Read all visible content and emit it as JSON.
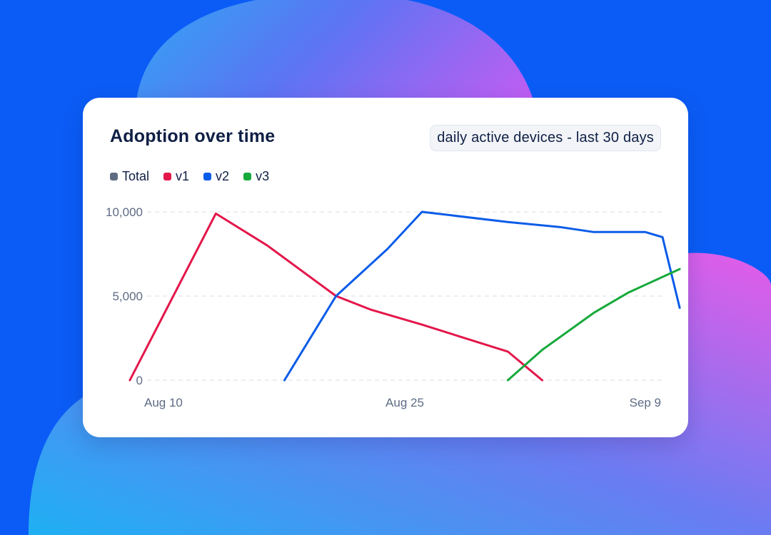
{
  "card": {
    "title": "Adoption over time",
    "range_label": "daily active devices - last 30 days"
  },
  "legend": [
    {
      "label": "Total",
      "color": "#5f6b80"
    },
    {
      "label": "v1",
      "color": "#e3174a"
    },
    {
      "label": "v2",
      "color": "#0b5ce8"
    },
    {
      "label": "v3",
      "color": "#16a93b"
    }
  ],
  "chart_data": {
    "type": "line",
    "title": "Adoption over time",
    "subtitle": "daily active devices - last 30 days",
    "xlabel": "",
    "ylabel": "",
    "x_range": [
      "2024-08-10",
      "2024-09-09"
    ],
    "ylim": [
      0,
      10000
    ],
    "y_ticks": [
      {
        "value": 0,
        "label": "0"
      },
      {
        "value": 5000,
        "label": "5,000"
      },
      {
        "value": 10000,
        "label": "10,000"
      }
    ],
    "x_ticks": [
      {
        "date": "2024-08-10",
        "label": "Aug 10"
      },
      {
        "date": "2024-08-25",
        "label": "Aug 25"
      },
      {
        "date": "2024-09-09",
        "label": "Sep 9"
      }
    ],
    "grid": true,
    "legend_position": "top-left",
    "series": [
      {
        "name": "Total",
        "color": "#5f6b80",
        "points": []
      },
      {
        "name": "v1",
        "color": "#e3174a",
        "points": [
          {
            "x": "2024-08-09",
            "y": 0
          },
          {
            "x": "2024-08-14",
            "y": 9900
          },
          {
            "x": "2024-08-17",
            "y": 8000
          },
          {
            "x": "2024-08-21",
            "y": 5000
          },
          {
            "x": "2024-08-23",
            "y": 4200
          },
          {
            "x": "2024-08-26",
            "y": 3300
          },
          {
            "x": "2024-08-31",
            "y": 1700
          },
          {
            "x": "2024-09-02",
            "y": 0
          }
        ]
      },
      {
        "name": "v2",
        "color": "#0b5ce8",
        "points": [
          {
            "x": "2024-08-18",
            "y": 0
          },
          {
            "x": "2024-08-21",
            "y": 5000
          },
          {
            "x": "2024-08-24",
            "y": 7800
          },
          {
            "x": "2024-08-26",
            "y": 10000
          },
          {
            "x": "2024-08-31",
            "y": 9400
          },
          {
            "x": "2024-09-03",
            "y": 9100
          },
          {
            "x": "2024-09-05",
            "y": 8800
          },
          {
            "x": "2024-09-07",
            "y": 8800
          },
          {
            "x": "2024-09-08",
            "y": 8800
          },
          {
            "x": "2024-09-09",
            "y": 8500
          },
          {
            "x": "2024-09-10",
            "y": 4300
          }
        ]
      },
      {
        "name": "v3",
        "color": "#16a93b",
        "points": [
          {
            "x": "2024-08-31",
            "y": 0
          },
          {
            "x": "2024-09-02",
            "y": 1800
          },
          {
            "x": "2024-09-05",
            "y": 4000
          },
          {
            "x": "2024-09-07",
            "y": 5200
          },
          {
            "x": "2024-09-10",
            "y": 6600
          }
        ]
      }
    ]
  }
}
